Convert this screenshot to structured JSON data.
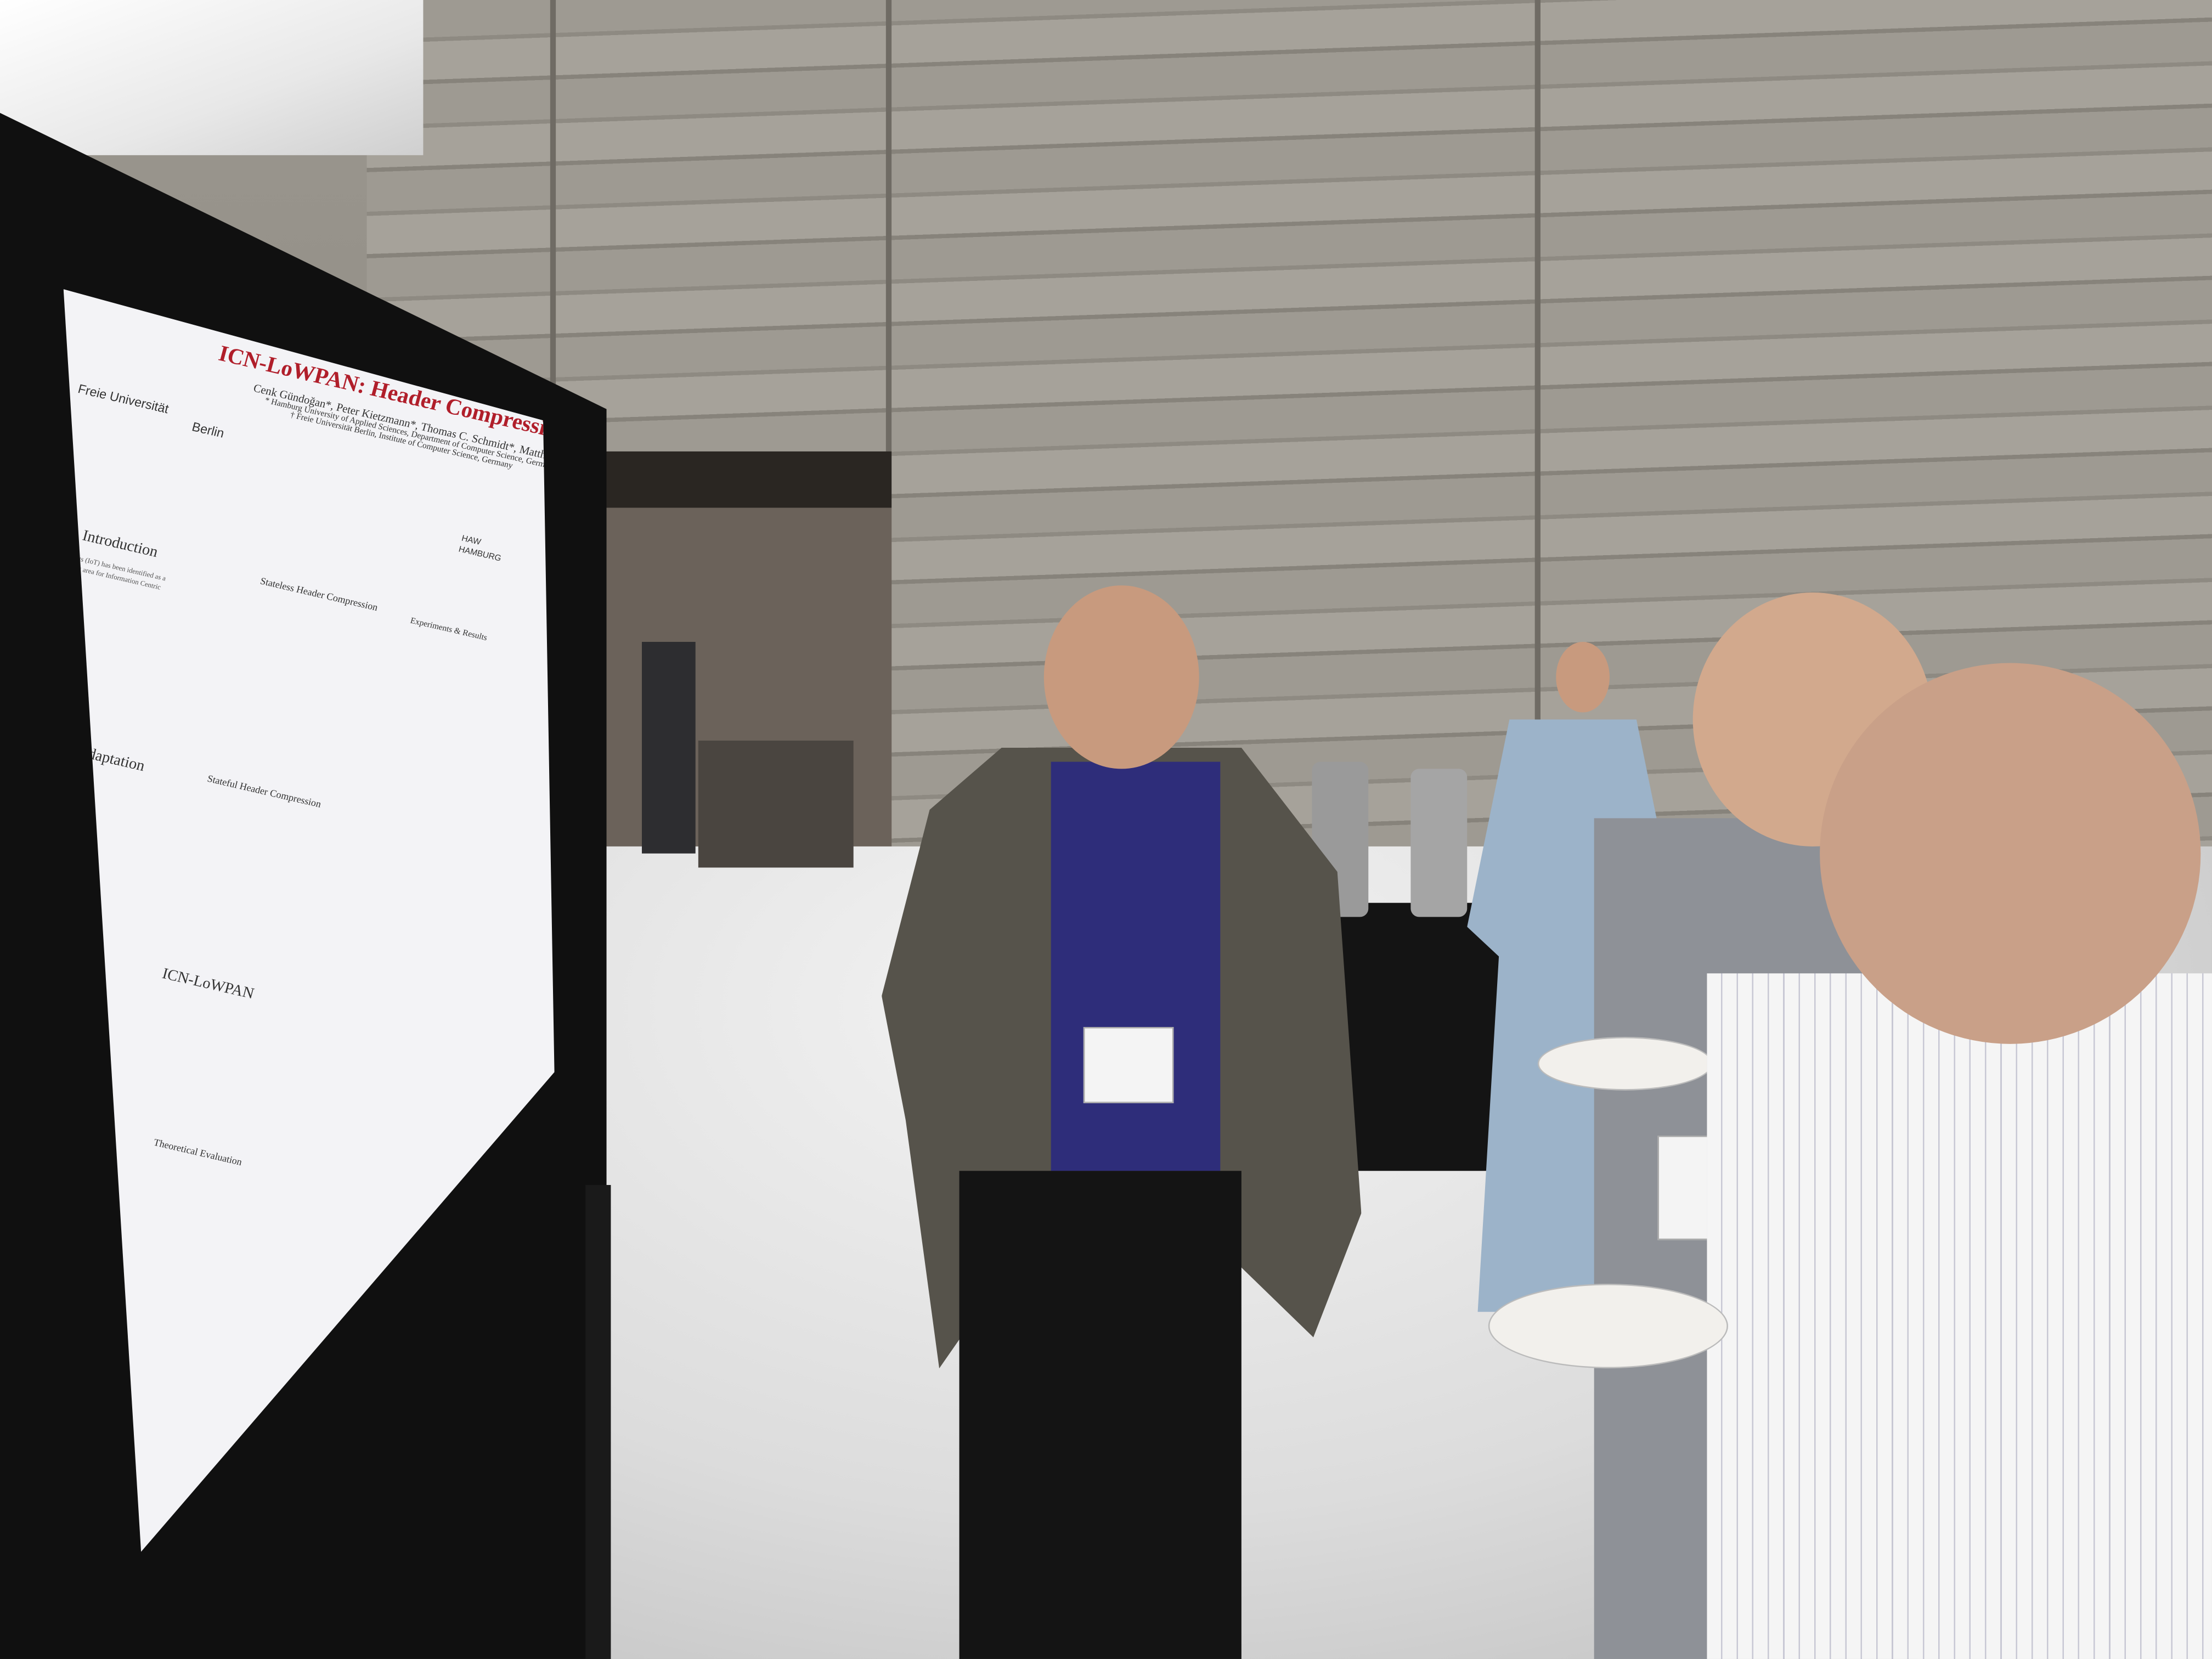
{
  "poster": {
    "title": "ICN-LoWPAN: Header Compression for the Constrained IoT",
    "authors": "Cenk Gündoğan*, Peter Kietzmann*, Thomas C. Schmidt*, Matthias Wählisch†",
    "affiliation_1": "* Hamburg University of Applied Sciences, Department of Computer Science, Germany",
    "affiliation_2": "† Freie Universität Berlin, Institute of Computer Science, Germany",
    "logo_left_1": "Freie Universität",
    "logo_left_2": "Berlin",
    "logo_right_1": "HAW",
    "logo_right_2": "HAMBURG",
    "sections": {
      "introduction": "Introduction",
      "lowpan": "LoWPAN Adaptation",
      "icn_lowpan": "ICN-LoWPAN",
      "stateless": "Stateless Header Compression",
      "stateful": "Stateful Header Compression",
      "experiments": "Experiments & Results",
      "theoretical": "Theoretical Evaluation"
    },
    "intro_text": "The Internet of Things (IoT) has been identified as a promising deployment area for Information Centric Networks (ICN)."
  }
}
